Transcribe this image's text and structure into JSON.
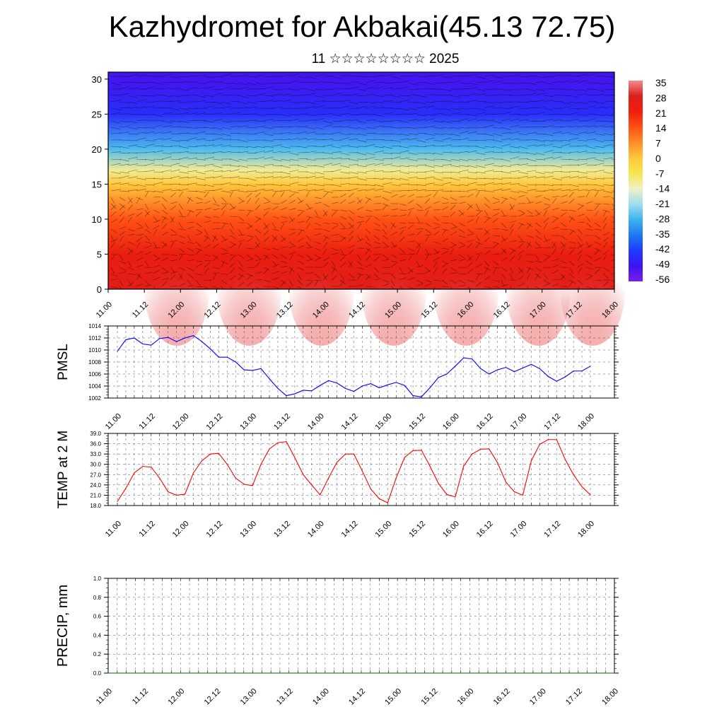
{
  "title": "Kazhydromet for Akbakai(45.13 72.75)",
  "subtitle": "11 ☆☆☆☆☆☆☆☆ 2025",
  "chart_data": [
    {
      "type": "heatmap",
      "name": "vertical temperature cross-section with wind vectors",
      "xlabel": "",
      "ylabel": "",
      "x_tick_labels": [
        "11.00",
        "11.12",
        "12.00",
        "12.12",
        "13.00",
        "13.12",
        "14.00",
        "14.12",
        "15.00",
        "15.12",
        "16.00",
        "16.12",
        "17.00",
        "17.12",
        "18.00"
      ],
      "ylim": [
        0,
        31
      ],
      "y_ticks": [
        0,
        5,
        10,
        15,
        20,
        25,
        30
      ],
      "colorbar_labels": [
        "35",
        "28",
        "21",
        "14",
        "7",
        "0",
        "-7",
        "-14",
        "-21",
        "-28",
        "-35",
        "-42",
        "-49",
        "-56"
      ],
      "colormap": [
        "#7a1ee6",
        "#3c14f0",
        "#1e3cff",
        "#1e78f0",
        "#3cb4f0",
        "#a0dcf0",
        "#f0f0c8",
        "#f5e650",
        "#ffc83c",
        "#ff8c28",
        "#ff5014",
        "#f01e0a",
        "#dc1e1e",
        "#f08c8c"
      ],
      "level_profile_temperature_C": [
        {
          "height": 0,
          "temp": 30
        },
        {
          "height": 5,
          "temp": 26
        },
        {
          "height": 10,
          "temp": 16
        },
        {
          "height": 15,
          "temp": 0
        },
        {
          "height": 17,
          "temp": -12
        },
        {
          "height": 20,
          "temp": -30
        },
        {
          "height": 25,
          "temp": -50
        },
        {
          "height": 30,
          "temp": -56
        }
      ]
    },
    {
      "type": "line",
      "ylabel": "PMSL",
      "ylim": [
        1002,
        1014
      ],
      "y_tick_labels": [
        "1002",
        "1004",
        "1006",
        "1008",
        "1010",
        "1012",
        "1014"
      ],
      "x_tick_labels": [
        "11.00",
        "11.12",
        "12.00",
        "12.12",
        "13.00",
        "13.12",
        "14.00",
        "14.12",
        "15.00",
        "15.12",
        "16.00",
        "16.12",
        "17.00",
        "17.12",
        "18.00"
      ],
      "x_hours": [
        0,
        3,
        6,
        9,
        12,
        15,
        18,
        21,
        24,
        27,
        30,
        33,
        36,
        39,
        42,
        45,
        48,
        51,
        54,
        57,
        60,
        63,
        66,
        69,
        72,
        75,
        78,
        81,
        84,
        87,
        90,
        93,
        96,
        99,
        102,
        105,
        108,
        111,
        114,
        117,
        120,
        123,
        126,
        129,
        132,
        135,
        138,
        141,
        144,
        147,
        150,
        153,
        156,
        159,
        162,
        165,
        168
      ],
      "values": [
        1009.8,
        1011.7,
        1012.0,
        1011.0,
        1010.8,
        1011.9,
        1012.1,
        1011.4,
        1012.0,
        1012.4,
        1011.4,
        1010.2,
        1008.8,
        1008.8,
        1008.0,
        1006.7,
        1006.6,
        1006.9,
        1005.2,
        1003.6,
        1002.4,
        1002.7,
        1003.3,
        1003.2,
        1004.1,
        1004.9,
        1004.5,
        1003.6,
        1003.1,
        1004.0,
        1004.4,
        1003.7,
        1004.2,
        1004.6,
        1004.1,
        1002.4,
        1002.2,
        1003.7,
        1005.4,
        1006.0,
        1007.3,
        1008.7,
        1008.5,
        1006.9,
        1006.0,
        1006.7,
        1007.1,
        1006.4,
        1007.0,
        1007.6,
        1006.9,
        1005.6,
        1004.8,
        1005.5,
        1006.5,
        1006.5,
        1007.3
      ],
      "color": "#0000ff"
    },
    {
      "type": "line",
      "ylabel": "TEMP at 2 M",
      "ylim": [
        18,
        39
      ],
      "y_tick_labels": [
        "18.0",
        "21.0",
        "24.0",
        "27.0",
        "30.0",
        "33.0",
        "36.0",
        "39.0"
      ],
      "x_tick_labels": [
        "11.00",
        "11.12",
        "12.00",
        "12.12",
        "13.00",
        "13.12",
        "14.00",
        "14.12",
        "15.00",
        "15.12",
        "16.00",
        "16.12",
        "17.00",
        "17.12",
        "18.00"
      ],
      "x_hours": [
        0,
        3,
        6,
        9,
        12,
        15,
        18,
        21,
        24,
        27,
        30,
        33,
        36,
        39,
        42,
        45,
        48,
        51,
        54,
        57,
        60,
        63,
        66,
        69,
        72,
        75,
        78,
        81,
        84,
        87,
        90,
        93,
        96,
        99,
        102,
        105,
        108,
        111,
        114,
        117,
        120,
        123,
        126,
        129,
        132,
        135,
        138,
        141,
        144,
        147,
        150,
        153,
        156,
        159,
        162,
        165,
        168
      ],
      "values": [
        19.2,
        23.0,
        27.5,
        29.4,
        29.2,
        26.0,
        22.0,
        21.0,
        21.3,
        27.5,
        31.0,
        33.0,
        33.2,
        30.0,
        26.0,
        24.2,
        23.8,
        30.0,
        34.5,
        36.3,
        36.6,
        32.0,
        27.0,
        24.0,
        21.1,
        26.0,
        30.6,
        33.0,
        33.0,
        28.0,
        22.8,
        20.0,
        18.8,
        26.0,
        32.0,
        34.0,
        34.1,
        29.5,
        24.5,
        21.2,
        20.5,
        29.5,
        33.0,
        34.4,
        34.5,
        30.5,
        24.8,
        22.0,
        21.0,
        31.0,
        35.8,
        37.2,
        37.2,
        31.5,
        27.0,
        23.5,
        21.1
      ],
      "color": "#ff0000"
    },
    {
      "type": "line",
      "ylabel": "PRECIP, mm",
      "ylim": [
        0,
        1
      ],
      "y_tick_labels": [
        "0.0",
        "0.2",
        "0.4",
        "0.6",
        "0.8",
        "1.0"
      ],
      "x_tick_labels": [
        "11.00",
        "11.12",
        "12.00",
        "12.12",
        "13.00",
        "13.12",
        "14.00",
        "14.12",
        "15.00",
        "15.12",
        "16.00",
        "16.12",
        "17.00",
        "17.12",
        "18.00"
      ],
      "x_hours": [
        0,
        168
      ],
      "values": [
        0,
        0
      ],
      "color": "#006400"
    }
  ]
}
